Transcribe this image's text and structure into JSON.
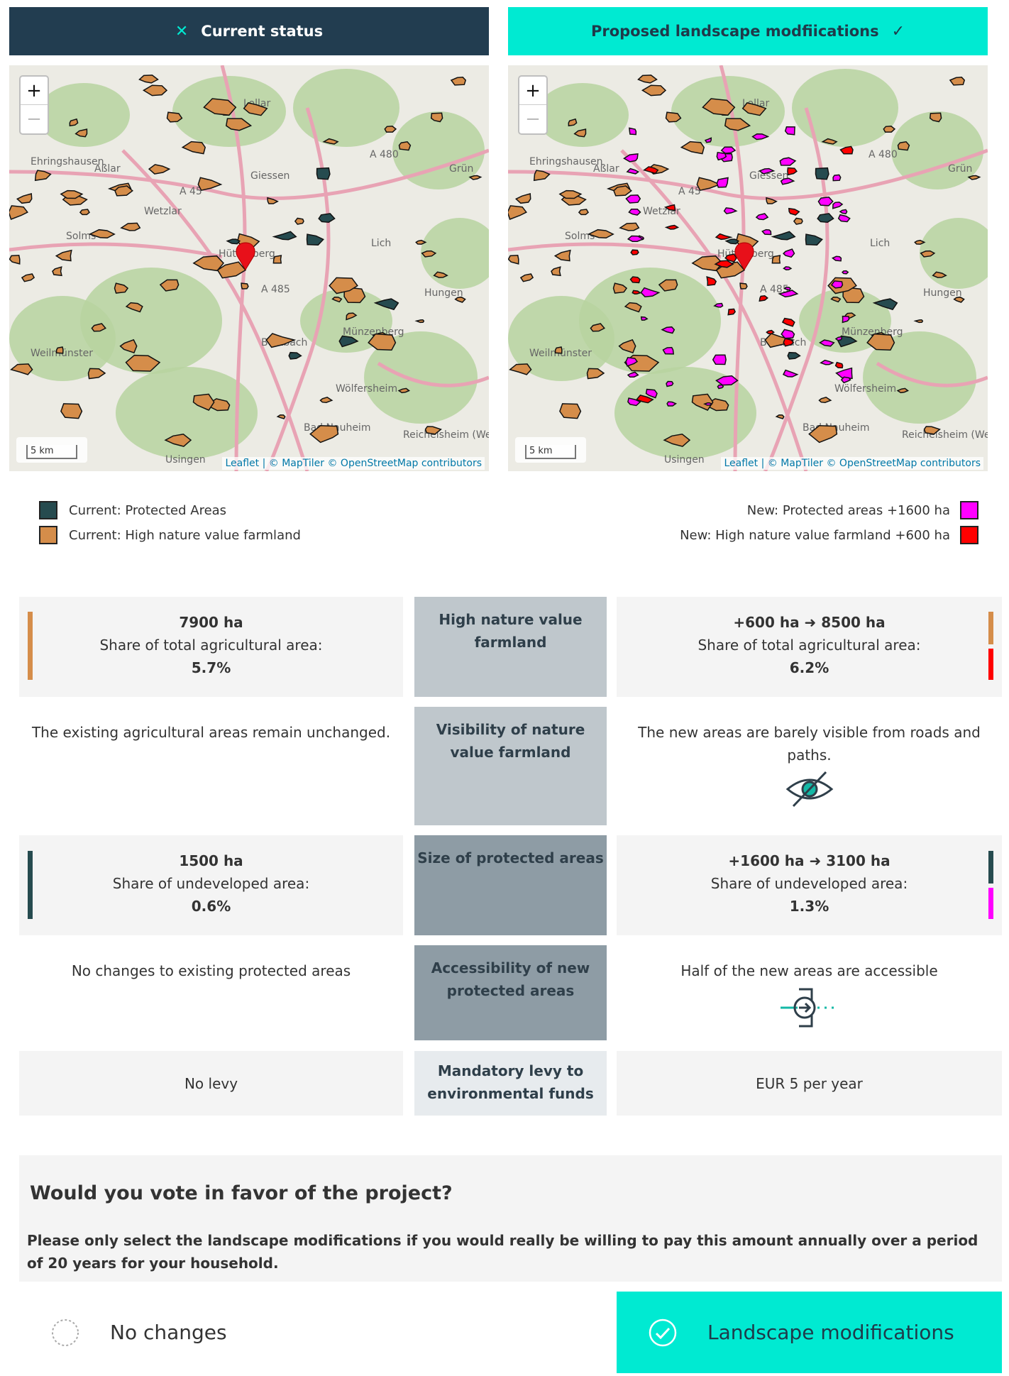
{
  "header": {
    "current_label": "Current status",
    "proposed_label": "Proposed landscape modfiications",
    "current_icon": "close-icon",
    "proposed_icon": "checkmark-icon"
  },
  "map": {
    "zoom_in": "+",
    "zoom_out": "−",
    "scale": "5 km",
    "attribution": "Leaflet | © MapTiler © OpenStreetMap contributors",
    "places": [
      "Lollar",
      "Ehringshausen",
      "Aßlar",
      "Wetzlar",
      "Solms",
      "Giessen",
      "Hüttenberg",
      "Lich",
      "Hungen",
      "Weilmünster",
      "Butzbach",
      "Münzenberg",
      "Wölfersheim",
      "Bad Nauheim",
      "Reichelsheim (Wetterau)",
      "Usingen",
      "Grün",
      "A 480",
      "A 45",
      "A 485"
    ]
  },
  "legend": {
    "current_protected": "Current: Protected Areas",
    "current_farmland": "Current: High nature value farmland",
    "new_protected": "New: Protected areas +1600 ha",
    "new_farmland": "New: High nature value farmland +600 ha",
    "colors": {
      "current_protected": "#264b4f",
      "current_farmland": "#d58d4a",
      "new_protected": "#ff00ff",
      "new_farmland": "#ff0000"
    }
  },
  "rows": {
    "farmland": {
      "criterion": "High nature value farmland",
      "current_value": "7900 ha",
      "current_share_label": "Share of total agricultural area:",
      "current_share": "5.7%",
      "new_value": "+600 ha ➜ 8500 ha",
      "new_share_label": "Share of total agricultural area:",
      "new_share": "6.2%"
    },
    "visibility": {
      "criterion": "Visibility of nature value farmland",
      "current": "The existing agricultural areas remain unchanged.",
      "new": "The new areas are barely visible from roads and paths.",
      "icon": "eye-crossed-icon"
    },
    "protected": {
      "criterion": "Size of protected areas",
      "current_value": "1500 ha",
      "current_share_label": "Share of undeveloped area:",
      "current_share": "0.6%",
      "new_value": "+1600 ha ➜ 3100 ha",
      "new_share_label": "Share of undeveloped area:",
      "new_share": "1.3%"
    },
    "accessibility": {
      "criterion": "Accessibility of new protected areas",
      "current": "No changes to existing protected areas",
      "new": "Half of the new areas are accessible",
      "icon": "enter-icon"
    },
    "levy": {
      "criterion": "Mandatory levy to environmental funds",
      "current": "No levy",
      "new": "EUR 5 per year"
    }
  },
  "vote": {
    "question": "Would you vote in favor of the project?",
    "note": "Please only select the landscape modifications if you would really be willing to pay this amount annually over a period of 20 years for your household.",
    "option_no": "No changes",
    "option_yes": "Landscape modifications"
  }
}
